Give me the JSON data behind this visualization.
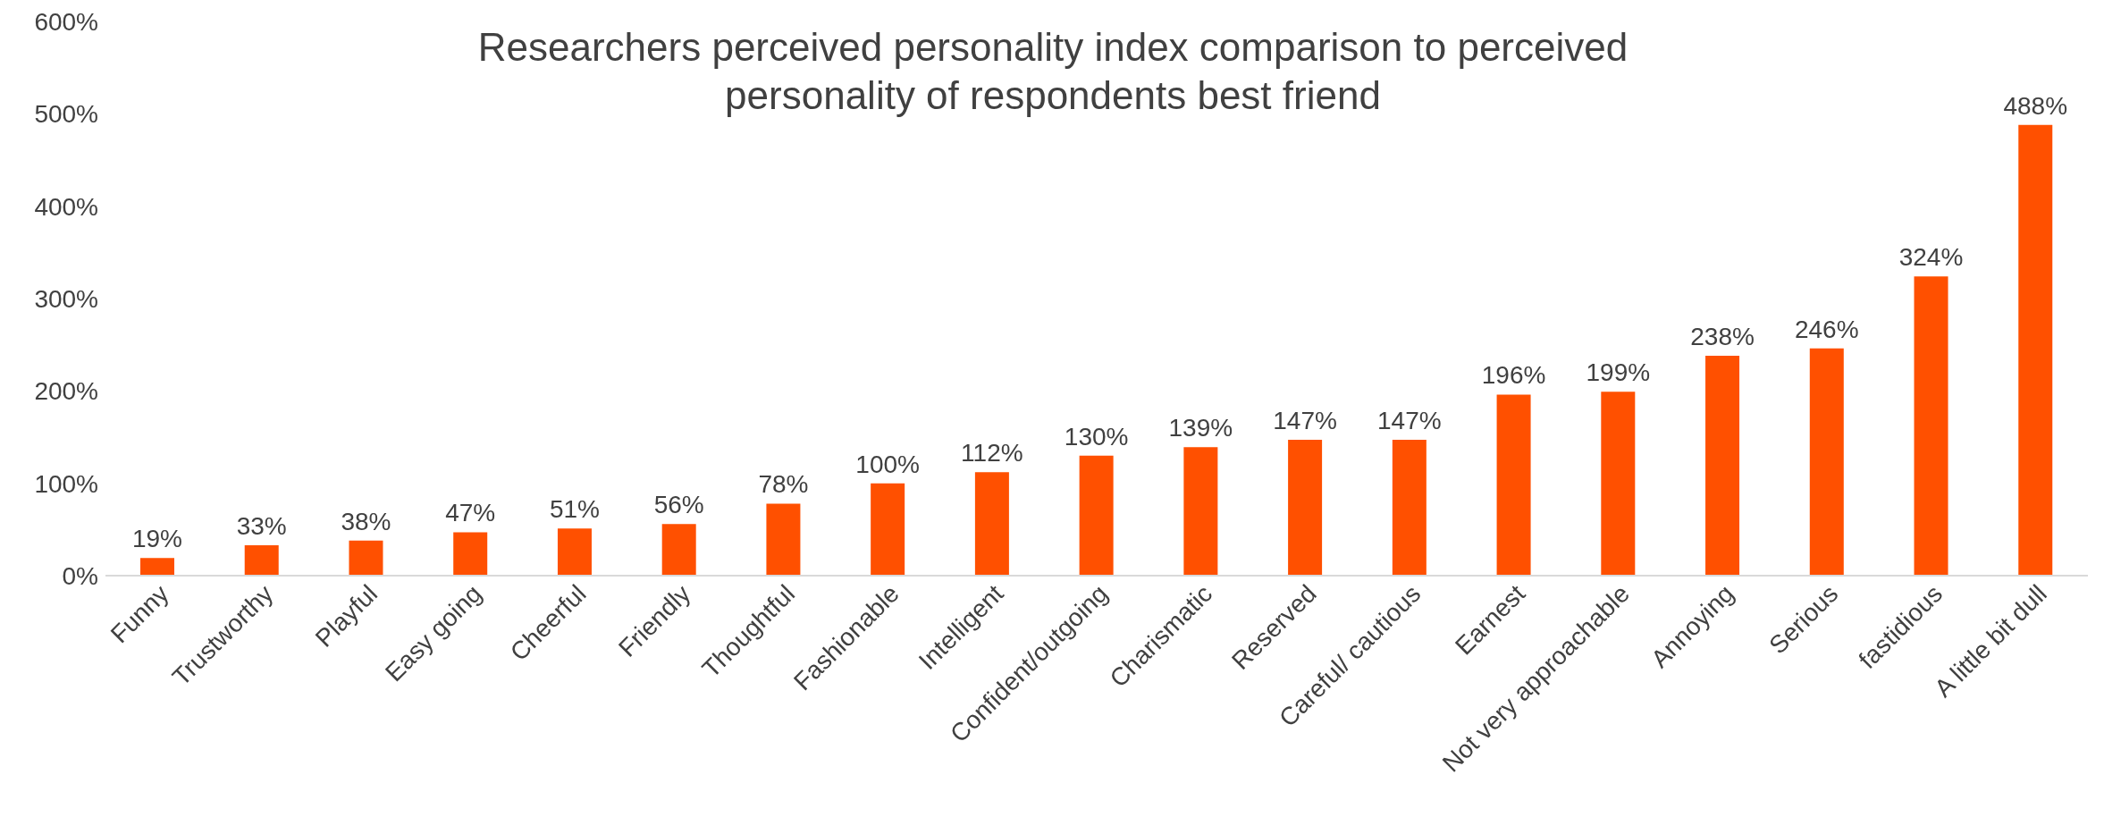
{
  "chart_data": {
    "type": "bar",
    "title": "Researchers perceived personality index comparison to perceived personality of respondents best friend",
    "categories": [
      "Funny",
      "Trustworthy",
      "Playful",
      "Easy going",
      "Cheerful",
      "Friendly",
      "Thoughtful",
      "Fashionable",
      "Intelligent",
      "Confident/outgoing",
      "Charismatic",
      "Reserved",
      "Careful/ cautious",
      "Earnest",
      "Not very approachable",
      "Annoying",
      "Serious",
      "fastidious",
      "A little bit dull"
    ],
    "values": [
      19,
      33,
      38,
      47,
      51,
      56,
      78,
      100,
      112,
      130,
      139,
      147,
      147,
      196,
      199,
      238,
      246,
      324,
      488
    ],
    "value_labels": [
      "19%",
      "33%",
      "38%",
      "47%",
      "51%",
      "56%",
      "78%",
      "100%",
      "112%",
      "130%",
      "139%",
      "147%",
      "147%",
      "196%",
      "199%",
      "238%",
      "246%",
      "324%",
      "488%"
    ],
    "color": "#ff5000",
    "ylim": [
      0,
      600
    ],
    "yticks": [
      {
        "value": 0,
        "label": "0%"
      },
      {
        "value": 100,
        "label": "100%"
      },
      {
        "value": 200,
        "label": "200%"
      },
      {
        "value": 300,
        "label": "300%"
      },
      {
        "value": 400,
        "label": "400%"
      },
      {
        "value": 500,
        "label": "500%"
      },
      {
        "value": 600,
        "label": "600%"
      }
    ],
    "grid": false,
    "legend": false
  }
}
